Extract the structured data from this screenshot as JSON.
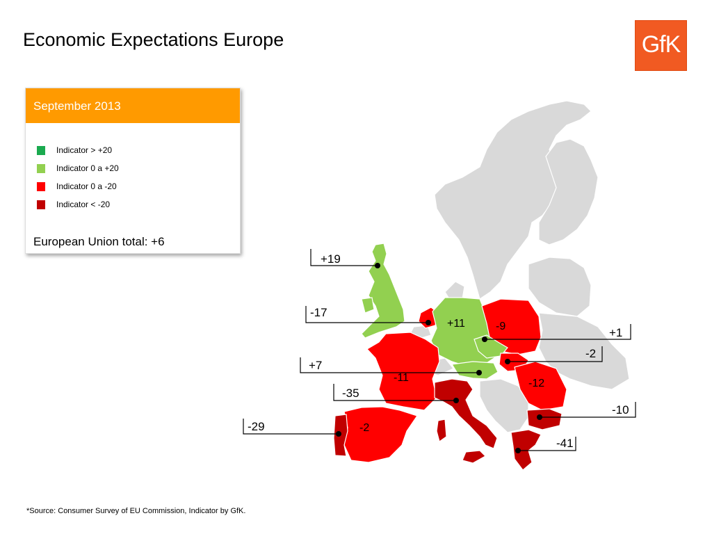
{
  "title": "Economic Expectations Europe",
  "logo": {
    "text": "GfK",
    "color": "#f15a22"
  },
  "legend": {
    "header": "September 2013",
    "items": [
      {
        "label": "Indicator > +20",
        "color": "#1aaa4f"
      },
      {
        "label": "Indicator 0 a +20",
        "color": "#92d050"
      },
      {
        "label": "Indicator 0 a -20",
        "color": "#ff0000"
      },
      {
        "label": "Indicator < -20",
        "color": "#c00000"
      }
    ],
    "eu_total": "European Union total:  +6"
  },
  "callouts": [
    {
      "country": "United Kingdom",
      "value": "+19"
    },
    {
      "country": "Netherlands",
      "value": "-17"
    },
    {
      "country": "Austria",
      "value": "+7"
    },
    {
      "country": "Italy",
      "value": "-35"
    },
    {
      "country": "Portugal",
      "value": "-29"
    },
    {
      "country": "Czech Republic",
      "value": "+1"
    },
    {
      "country": "Hungary",
      "value": "-2"
    },
    {
      "country": "Bulgaria",
      "value": "-10"
    },
    {
      "country": "Greece",
      "value": "-41"
    }
  ],
  "inline_values": [
    {
      "country": "Germany",
      "value": "+11"
    },
    {
      "country": "Poland",
      "value": "-9"
    },
    {
      "country": "France",
      "value": "-11"
    },
    {
      "country": "Romania",
      "value": "-12"
    },
    {
      "country": "Spain",
      "value": "-2"
    }
  ],
  "source": "*Source: Consumer Survey of EU Commission, Indicator by GfK."
}
